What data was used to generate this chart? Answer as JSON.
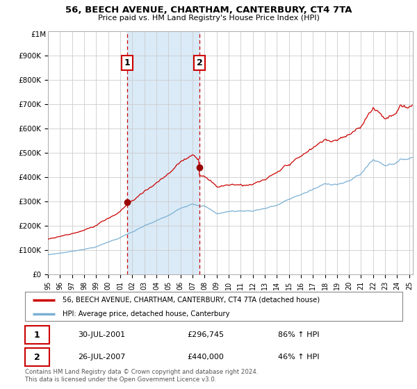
{
  "title": "56, BEECH AVENUE, CHARTHAM, CANTERBURY, CT4 7TA",
  "subtitle": "Price paid vs. HM Land Registry's House Price Index (HPI)",
  "legend_line1": "56, BEECH AVENUE, CHARTHAM, CANTERBURY, CT4 7TA (detached house)",
  "legend_line2": "HPI: Average price, detached house, Canterbury",
  "footnote": "Contains HM Land Registry data © Crown copyright and database right 2024.\nThis data is licensed under the Open Government Licence v3.0.",
  "sale1_display": "30-JUL-2001",
  "sale2_display": "26-JUL-2007",
  "sale1_price": 296745,
  "sale2_price": 440000,
  "sale1_pct": "86% ↑ HPI",
  "sale2_pct": "46% ↑ HPI",
  "sale1_price_str": "£296,745",
  "sale2_price_str": "£440,000",
  "sale1_x": 2001.58,
  "sale2_x": 2007.58,
  "ylim": [
    0,
    1000000
  ],
  "xlim_start": 1995.0,
  "xlim_end": 2025.3,
  "red_line_color": "#cc0000",
  "blue_line_color": "#7ab0d4",
  "shade_color": "#daeaf7",
  "grid_color": "#cccccc",
  "sale_dot_color": "#990000"
}
